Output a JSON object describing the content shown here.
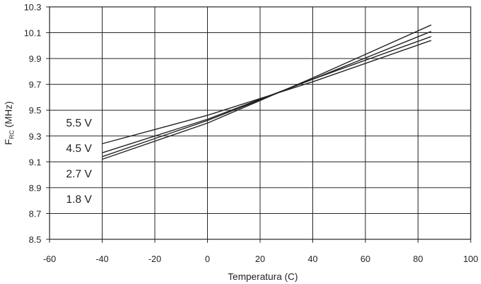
{
  "chart_data": {
    "type": "line",
    "xlabel": "Temperatura (C)",
    "ylabel": "F",
    "ylabel_subscript": "RC",
    "ylabel_suffix": " (MHz)",
    "xlim": [
      -60,
      100
    ],
    "ylim": [
      8.5,
      10.3
    ],
    "xticks": [
      -60,
      -40,
      -20,
      0,
      20,
      40,
      60,
      80,
      100
    ],
    "yticks": [
      8.5,
      8.7,
      8.9,
      9.1,
      9.3,
      9.5,
      9.7,
      9.9,
      10.1,
      10.3
    ],
    "grid": true,
    "series": [
      {
        "name": "5.5 V",
        "x": [
          -40,
          0,
          40,
          85
        ],
        "y": [
          9.24,
          9.46,
          9.72,
          10.04
        ]
      },
      {
        "name": "4.5 V",
        "x": [
          -40,
          0,
          40,
          85
        ],
        "y": [
          9.17,
          9.43,
          9.74,
          10.07
        ]
      },
      {
        "name": "2.7 V",
        "x": [
          -40,
          0,
          40,
          85
        ],
        "y": [
          9.14,
          9.42,
          9.74,
          10.11
        ]
      },
      {
        "name": "1.8 V",
        "x": [
          -40,
          0,
          40,
          85
        ],
        "y": [
          9.12,
          9.4,
          9.75,
          10.16
        ]
      }
    ]
  }
}
